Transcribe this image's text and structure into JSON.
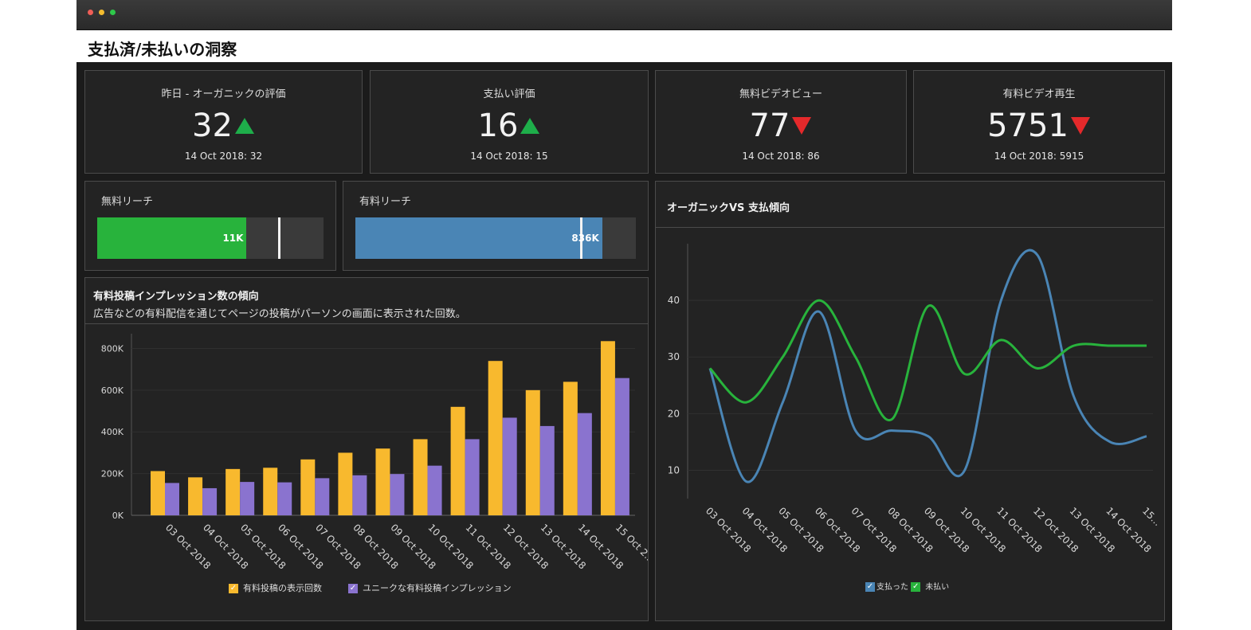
{
  "page": {
    "title": "支払済/未払いの洞察"
  },
  "colors": {
    "up": "#1eae4a",
    "down": "#e5292b",
    "green": "#28b33c",
    "blue": "#4a85b5",
    "orange": "#f8b92e",
    "purple": "#8a73cf"
  },
  "kpis": [
    {
      "label": "昨日 - オーガニックの評価",
      "value": "32",
      "trend": "up",
      "sub": "14 Oct 2018: 32"
    },
    {
      "label": "支払い評価",
      "value": "16",
      "trend": "up",
      "sub": "14 Oct 2018: 15"
    },
    {
      "label": "無料ビデオビュー",
      "value": "77",
      "trend": "down",
      "sub": "14 Oct 2018: 86"
    },
    {
      "label": "有料ビデオ再生",
      "value": "5751",
      "trend": "down",
      "sub": "14 Oct 2018: 5915"
    }
  ],
  "reach": [
    {
      "label": "無料リーチ",
      "value_label": "11K",
      "fill": 0.66,
      "marker": 0.8,
      "color": "#28b33c"
    },
    {
      "label": "有料リーチ",
      "value_label": "836K",
      "fill": 0.88,
      "marker": 0.8,
      "color": "#4a85b5"
    }
  ],
  "impressions": {
    "title": "有料投稿インプレッション数の傾向",
    "subtitle": "広告などの有料配信を通じてページの投稿がパーソンの画面に表示された回数。",
    "legend": [
      "有料投稿の表示回数",
      "ユニークな有料投稿インプレッション"
    ]
  },
  "trend": {
    "title": "オーガニックVS 支払傾向",
    "legend": [
      "支払った",
      "未払い"
    ]
  },
  "chart_data": [
    {
      "type": "bar",
      "categories": [
        "03 Oct 2018",
        "04 Oct 2018",
        "05 Oct 2018",
        "06 Oct 2018",
        "07 Oct 2018",
        "08 Oct 2018",
        "09 Oct 2018",
        "10 Oct 2018",
        "11 Oct 2018",
        "12 Oct 2018",
        "13 Oct 2018",
        "14 Oct 2018",
        "15 Oct 2..."
      ],
      "series": [
        {
          "name": "有料投稿の表示回数",
          "values": [
            212000,
            182000,
            222000,
            228000,
            268000,
            300000,
            320000,
            365000,
            520000,
            740000,
            600000,
            640000,
            835000
          ]
        },
        {
          "name": "ユニークな有料投稿インプレッション",
          "values": [
            155000,
            130000,
            160000,
            158000,
            178000,
            192000,
            198000,
            238000,
            365000,
            468000,
            428000,
            490000,
            658000
          ]
        }
      ],
      "yticks": [
        "0K",
        "200K",
        "400K",
        "600K",
        "800K"
      ],
      "ylim": [
        0,
        840000
      ]
    },
    {
      "type": "line",
      "categories": [
        "03 Oct 2018",
        "04 Oct 2018",
        "05 Oct 2018",
        "06 Oct 2018",
        "07 Oct 2018",
        "08 Oct 2018",
        "09 Oct 2018",
        "10 Oct 2018",
        "11 Oct 2018",
        "12 Oct 2018",
        "13 Oct 2018",
        "14 Oct 2018",
        "15..."
      ],
      "series": [
        {
          "name": "支払った",
          "values": [
            28,
            8,
            22,
            38,
            17,
            17,
            16,
            10,
            40,
            48,
            23,
            15,
            16
          ]
        },
        {
          "name": "未払い",
          "values": [
            28,
            22,
            30,
            40,
            30,
            19,
            39,
            27,
            33,
            28,
            32,
            32,
            32
          ]
        }
      ],
      "yticks": [
        10,
        20,
        30,
        40
      ],
      "ylim": [
        5,
        50
      ]
    }
  ]
}
